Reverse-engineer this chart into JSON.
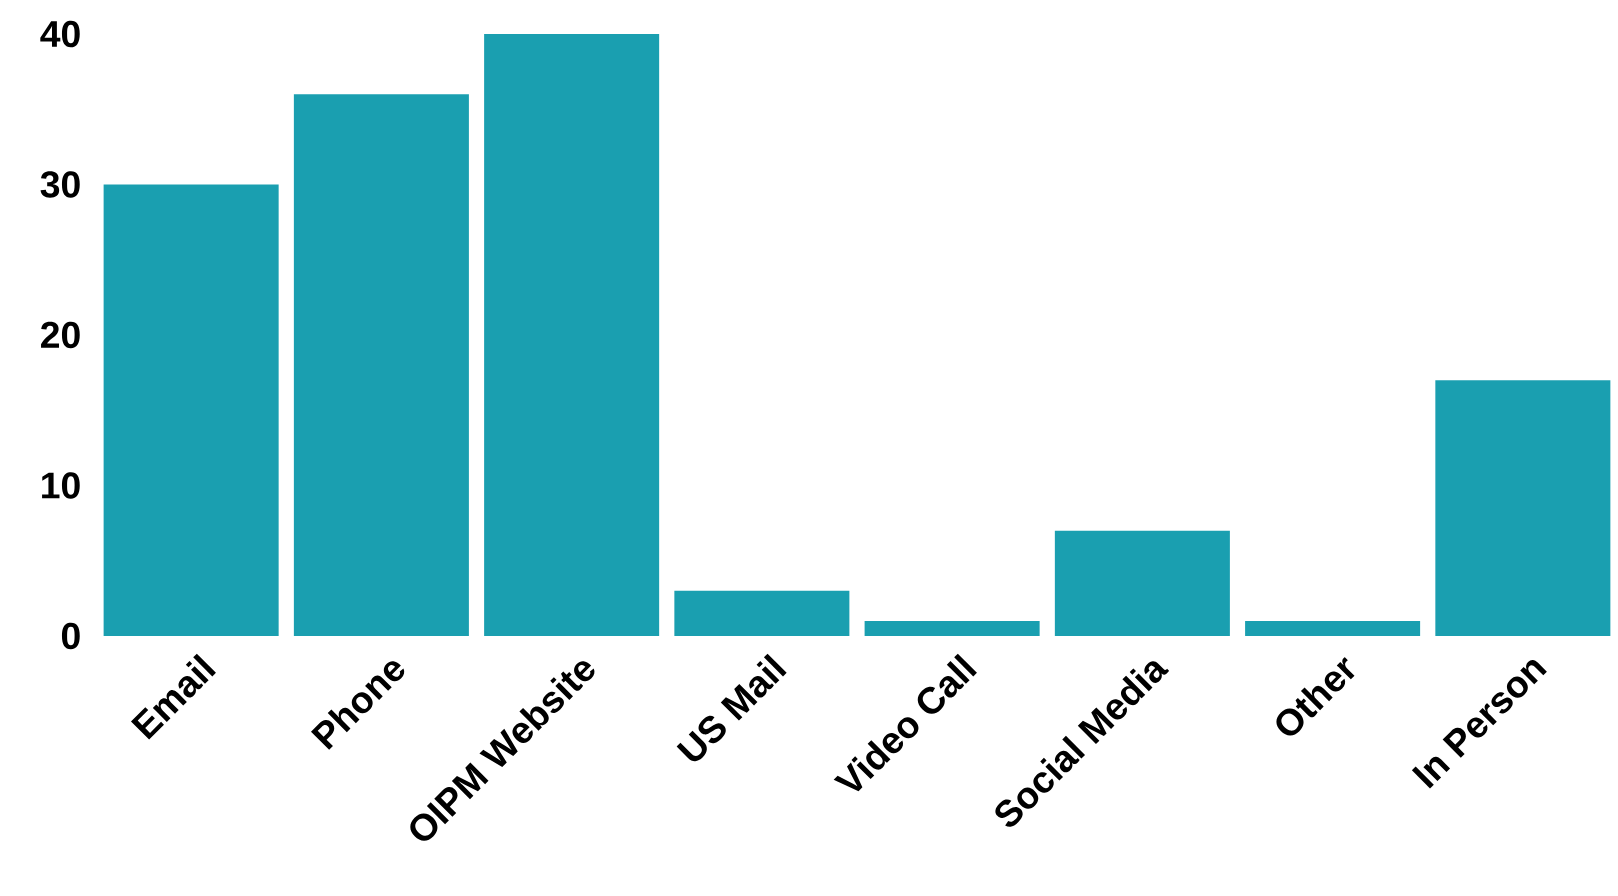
{
  "chart_data": {
    "type": "bar",
    "categories": [
      "Email",
      "Phone",
      "OIPM Website",
      "US Mail",
      "Video Call",
      "Social Media",
      "Other",
      "In Person"
    ],
    "values": [
      30,
      36,
      40,
      3,
      1,
      7,
      1,
      17
    ],
    "color": "#1a9fb0",
    "ylim": [
      0,
      40
    ],
    "yticks": [
      0,
      10,
      20,
      30,
      40
    ],
    "grid": false
  }
}
